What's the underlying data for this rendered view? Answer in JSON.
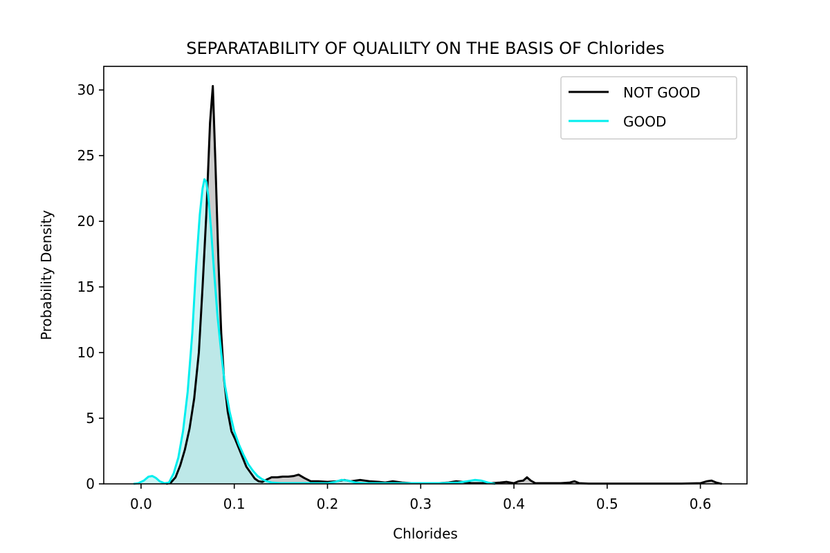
{
  "chart_data": {
    "type": "area",
    "title": "SEPARATABILITY OF QUALILTY ON THE BASIS OF Chlorides",
    "xlabel": "Chlorides",
    "ylabel": "Probability Density",
    "xlim": [
      -0.04,
      0.65
    ],
    "ylim": [
      0,
      31.8
    ],
    "xticks": [
      0.0,
      0.1,
      0.2,
      0.3,
      0.4,
      0.5,
      0.6
    ],
    "xtick_labels": [
      "0.0",
      "0.1",
      "0.2",
      "0.3",
      "0.4",
      "0.5",
      "0.6"
    ],
    "yticks": [
      0,
      5,
      10,
      15,
      20,
      25,
      30
    ],
    "ytick_labels": [
      "0",
      "5",
      "10",
      "15",
      "20",
      "25",
      "30"
    ],
    "grid": false,
    "legend_position": "top-right",
    "series": [
      {
        "name": "NOT GOOD",
        "color": "#000000",
        "fill": "#bbbbbb",
        "x": [
          0.027,
          0.032,
          0.037,
          0.042,
          0.047,
          0.052,
          0.057,
          0.062,
          0.066,
          0.07,
          0.074,
          0.077,
          0.08,
          0.083,
          0.086,
          0.089,
          0.093,
          0.097,
          0.101,
          0.105,
          0.109,
          0.113,
          0.118,
          0.122,
          0.126,
          0.13,
          0.134,
          0.14,
          0.146,
          0.152,
          0.158,
          0.164,
          0.169,
          0.175,
          0.182,
          0.19,
          0.2,
          0.21,
          0.218,
          0.225,
          0.235,
          0.245,
          0.255,
          0.262,
          0.27,
          0.28,
          0.29,
          0.3,
          0.32,
          0.33,
          0.338,
          0.345,
          0.355,
          0.365,
          0.375,
          0.385,
          0.392,
          0.4,
          0.405,
          0.41,
          0.414,
          0.418,
          0.423,
          0.43,
          0.44,
          0.45,
          0.46,
          0.465,
          0.47,
          0.48,
          0.5,
          0.52,
          0.55,
          0.58,
          0.6,
          0.607,
          0.612,
          0.617,
          0.623
        ],
        "y": [
          0.0,
          0.1,
          0.5,
          1.4,
          2.6,
          4.2,
          6.5,
          10.0,
          15.0,
          20.5,
          27.5,
          30.3,
          24.0,
          17.0,
          11.5,
          8.0,
          5.5,
          4.0,
          3.4,
          2.7,
          2.0,
          1.3,
          0.8,
          0.4,
          0.2,
          0.15,
          0.3,
          0.5,
          0.5,
          0.55,
          0.55,
          0.6,
          0.7,
          0.45,
          0.2,
          0.2,
          0.15,
          0.2,
          0.3,
          0.2,
          0.3,
          0.2,
          0.15,
          0.1,
          0.2,
          0.1,
          0.05,
          0.05,
          0.05,
          0.1,
          0.2,
          0.15,
          0.05,
          0.05,
          0.05,
          0.1,
          0.15,
          0.05,
          0.2,
          0.25,
          0.5,
          0.25,
          0.05,
          0.05,
          0.05,
          0.05,
          0.1,
          0.2,
          0.05,
          0.02,
          0.02,
          0.02,
          0.02,
          0.02,
          0.05,
          0.2,
          0.25,
          0.1,
          0.0
        ]
      },
      {
        "name": "GOOD",
        "color": "#00eeee",
        "fill": "#b8f2f2",
        "x": [
          -0.008,
          -0.003,
          0.003,
          0.008,
          0.012,
          0.016,
          0.02,
          0.025,
          0.03,
          0.035,
          0.04,
          0.045,
          0.05,
          0.055,
          0.059,
          0.063,
          0.066,
          0.068,
          0.07,
          0.072,
          0.075,
          0.078,
          0.082,
          0.086,
          0.09,
          0.095,
          0.1,
          0.105,
          0.11,
          0.115,
          0.12,
          0.125,
          0.13,
          0.135,
          0.14,
          0.15,
          0.16,
          0.17,
          0.18,
          0.19,
          0.2,
          0.208,
          0.215,
          0.222,
          0.23,
          0.24,
          0.26,
          0.28,
          0.3,
          0.32,
          0.34,
          0.35,
          0.358,
          0.365,
          0.372,
          0.38
        ],
        "y": [
          0.0,
          0.05,
          0.25,
          0.55,
          0.6,
          0.45,
          0.2,
          0.05,
          0.1,
          0.8,
          2.0,
          4.0,
          7.0,
          11.5,
          16.5,
          20.5,
          22.5,
          23.2,
          23.0,
          22.0,
          19.5,
          16.5,
          12.8,
          10.0,
          7.5,
          5.5,
          4.0,
          3.0,
          2.2,
          1.5,
          1.0,
          0.6,
          0.35,
          0.2,
          0.1,
          0.05,
          0.05,
          0.05,
          0.05,
          0.05,
          0.05,
          0.15,
          0.3,
          0.25,
          0.1,
          0.05,
          0.05,
          0.05,
          0.05,
          0.05,
          0.1,
          0.2,
          0.3,
          0.25,
          0.1,
          0.0
        ]
      }
    ]
  }
}
